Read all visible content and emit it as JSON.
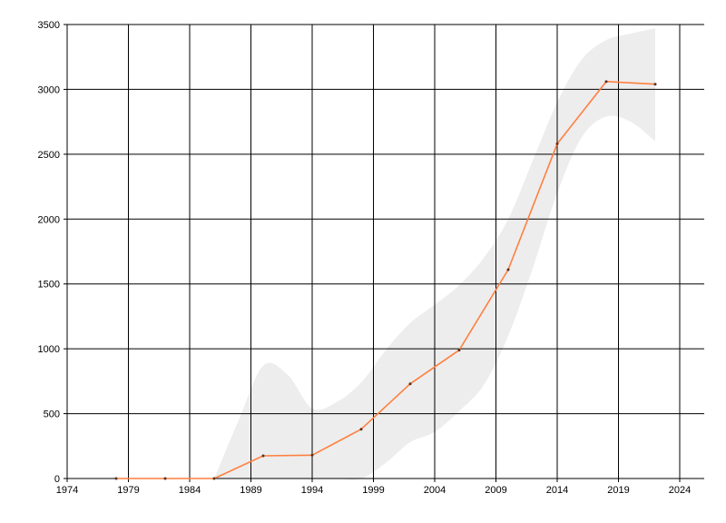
{
  "chart_data": {
    "type": "line",
    "title": "",
    "xlabel": "",
    "ylabel": "",
    "xlim": [
      1974,
      2026
    ],
    "ylim": [
      0,
      3500
    ],
    "x_ticks": [
      "1974",
      "1979",
      "1984",
      "1989",
      "1994",
      "1999",
      "2004",
      "2009",
      "2014",
      "2019",
      "2024"
    ],
    "y_ticks": [
      "0",
      "500",
      "1000",
      "1500",
      "2000",
      "2500",
      "3000",
      "3500"
    ],
    "grid": true,
    "legend": "none",
    "colors": {
      "line": "#ff7f3f",
      "band": "#ededed",
      "grid": "#000000",
      "point": "#5a3020"
    },
    "series": [
      {
        "x": [
          1978,
          1982,
          1986,
          1990,
          1994,
          1998,
          2002,
          2006,
          2010,
          2014,
          2018,
          2022
        ],
        "values": [
          0,
          0,
          0,
          175,
          180,
          380,
          730,
          990,
          1610,
          2580,
          3060,
          3040
        ]
      }
    ],
    "confidence_band": {
      "x": [
        1986,
        1988,
        1990,
        1992,
        1994,
        1996,
        1998,
        2000,
        2002,
        2004,
        2006,
        2008,
        2010,
        2012,
        2014,
        2016,
        2018,
        2020,
        2022
      ],
      "upper": [
        0,
        450,
        870,
        800,
        540,
        590,
        740,
        990,
        1200,
        1340,
        1490,
        1700,
        2000,
        2450,
        2900,
        3230,
        3380,
        3430,
        3470
      ],
      "lower": [
        0,
        0,
        0,
        0,
        0,
        0,
        0,
        120,
        280,
        360,
        520,
        720,
        1100,
        1620,
        2200,
        2630,
        2790,
        2750,
        2600
      ]
    }
  }
}
